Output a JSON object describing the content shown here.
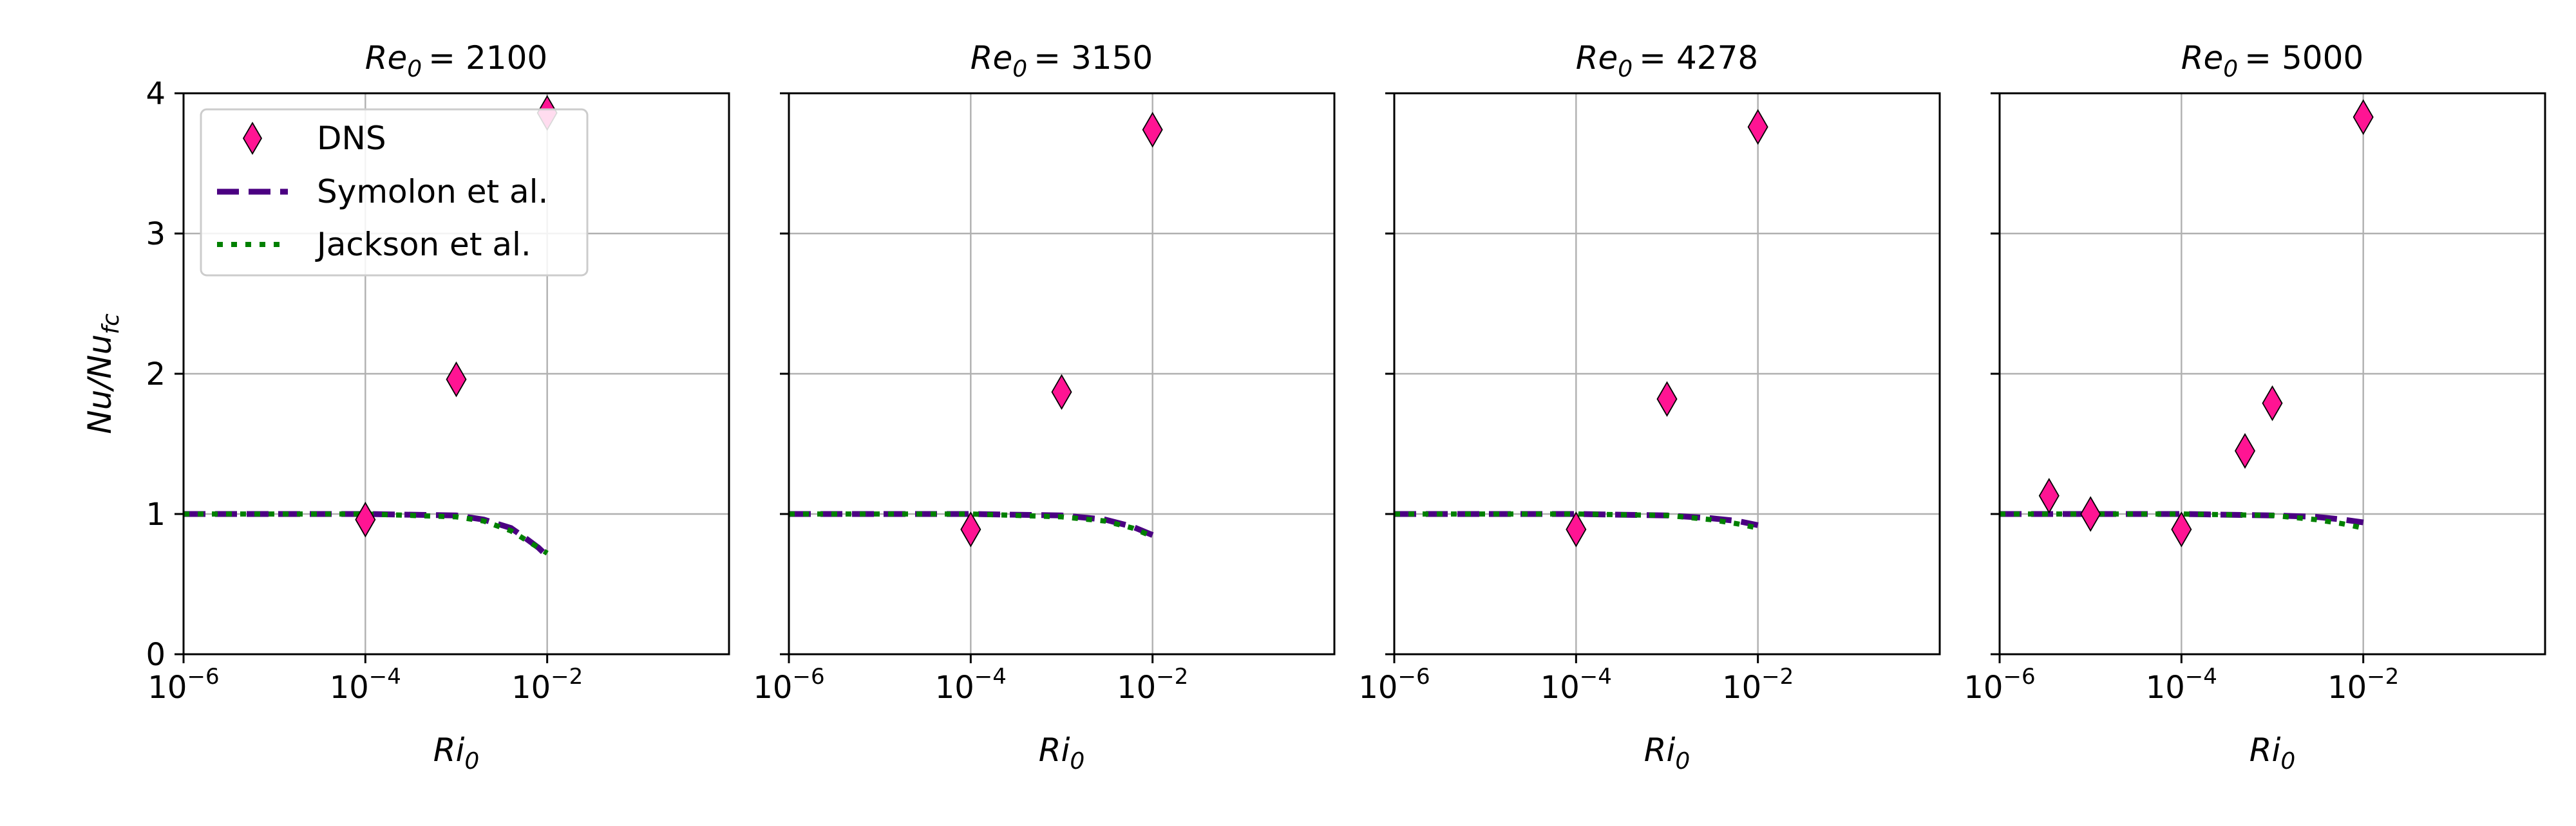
{
  "chart_data": [
    {
      "type": "scatter",
      "title_prefix": "Re",
      "title_sub": "0",
      "title_value": "= 2100",
      "xlabel": "Ri",
      "xlabel_sub": "0",
      "ylabel": "Nu/Nu",
      "ylabel_sub": "fc",
      "x_scale": "log",
      "xlim": [
        1e-06,
        1.0
      ],
      "ylim": [
        0,
        4
      ],
      "x_ticks": [
        {
          "base": "10",
          "exp": "−6",
          "value": 1e-06
        },
        {
          "base": "10",
          "exp": "−4",
          "value": 0.0001
        },
        {
          "base": "10",
          "exp": "−2",
          "value": 0.01
        }
      ],
      "y_ticks": [
        "0",
        "1",
        "2",
        "3",
        "4"
      ],
      "grid": true,
      "series": [
        {
          "name": "DNS",
          "kind": "markers",
          "marker": "diamond",
          "color": "#ff1493",
          "x": [
            0.0001,
            0.001,
            0.01
          ],
          "y": [
            0.96,
            1.96,
            3.86
          ]
        },
        {
          "name": "Symolon et al.",
          "kind": "dashed",
          "color": "#4b0082",
          "x": [
            1e-06,
            0.0001,
            0.001,
            0.002,
            0.004,
            0.006,
            0.008,
            0.01
          ],
          "y": [
            1.0,
            1.0,
            0.99,
            0.96,
            0.9,
            0.82,
            0.76,
            0.7
          ]
        },
        {
          "name": "Jackson et al.",
          "kind": "dotted",
          "color": "#008000",
          "x": [
            1e-06,
            0.0001,
            0.001,
            0.002,
            0.004,
            0.006,
            0.008,
            0.01
          ],
          "y": [
            1.0,
            1.0,
            0.98,
            0.95,
            0.88,
            0.81,
            0.76,
            0.72
          ]
        }
      ],
      "legend": {
        "position": "top-left",
        "entries": [
          "DNS",
          "Symolon et al.",
          "Jackson et al."
        ]
      }
    },
    {
      "type": "scatter",
      "title_prefix": "Re",
      "title_sub": "0",
      "title_value": "= 3150",
      "xlabel": "Ri",
      "xlabel_sub": "0",
      "x_scale": "log",
      "xlim": [
        1e-06,
        1.0
      ],
      "ylim": [
        0,
        4
      ],
      "x_ticks": [
        {
          "base": "10",
          "exp": "−6",
          "value": 1e-06
        },
        {
          "base": "10",
          "exp": "−4",
          "value": 0.0001
        },
        {
          "base": "10",
          "exp": "−2",
          "value": 0.01
        }
      ],
      "grid": true,
      "series": [
        {
          "name": "DNS",
          "kind": "markers",
          "marker": "diamond",
          "color": "#ff1493",
          "x": [
            0.0001,
            0.001,
            0.01
          ],
          "y": [
            0.89,
            1.87,
            3.74
          ]
        },
        {
          "name": "Symolon et al.",
          "kind": "dashed",
          "color": "#4b0082",
          "x": [
            1e-06,
            0.0001,
            0.001,
            0.003,
            0.006,
            0.01
          ],
          "y": [
            1.0,
            1.0,
            0.99,
            0.96,
            0.91,
            0.85
          ]
        },
        {
          "name": "Jackson et al.",
          "kind": "dotted",
          "color": "#008000",
          "x": [
            1e-06,
            0.0001,
            0.001,
            0.003,
            0.006,
            0.01
          ],
          "y": [
            1.0,
            1.0,
            0.98,
            0.95,
            0.9,
            0.84
          ]
        }
      ]
    },
    {
      "type": "scatter",
      "title_prefix": "Re",
      "title_sub": "0",
      "title_value": "= 4278",
      "xlabel": "Ri",
      "xlabel_sub": "0",
      "x_scale": "log",
      "xlim": [
        1e-06,
        1.0
      ],
      "ylim": [
        0,
        4
      ],
      "x_ticks": [
        {
          "base": "10",
          "exp": "−6",
          "value": 1e-06
        },
        {
          "base": "10",
          "exp": "−4",
          "value": 0.0001
        },
        {
          "base": "10",
          "exp": "−2",
          "value": 0.01
        }
      ],
      "grid": true,
      "series": [
        {
          "name": "DNS",
          "kind": "markers",
          "marker": "diamond",
          "color": "#ff1493",
          "x": [
            0.0001,
            0.001,
            0.01
          ],
          "y": [
            0.89,
            1.82,
            3.76
          ]
        },
        {
          "name": "Symolon et al.",
          "kind": "dashed",
          "color": "#4b0082",
          "x": [
            1e-06,
            0.0001,
            0.001,
            0.003,
            0.006,
            0.01
          ],
          "y": [
            1.0,
            1.0,
            0.99,
            0.97,
            0.95,
            0.92
          ]
        },
        {
          "name": "Jackson et al.",
          "kind": "dotted",
          "color": "#008000",
          "x": [
            1e-06,
            0.0001,
            0.001,
            0.003,
            0.006,
            0.01
          ],
          "y": [
            1.0,
            1.0,
            0.99,
            0.96,
            0.93,
            0.9
          ]
        }
      ]
    },
    {
      "type": "scatter",
      "title_prefix": "Re",
      "title_sub": "0",
      "title_value": "= 5000",
      "xlabel": "Ri",
      "xlabel_sub": "0",
      "x_scale": "log",
      "xlim": [
        1e-06,
        1.0
      ],
      "ylim": [
        0,
        4
      ],
      "x_ticks": [
        {
          "base": "10",
          "exp": "−6",
          "value": 1e-06
        },
        {
          "base": "10",
          "exp": "−4",
          "value": 0.0001
        },
        {
          "base": "10",
          "exp": "−2",
          "value": 0.01
        }
      ],
      "grid": true,
      "series": [
        {
          "name": "DNS",
          "kind": "markers",
          "marker": "diamond",
          "color": "#ff1493",
          "x": [
            3.5e-06,
            1e-05,
            0.0001,
            0.0005,
            0.001,
            0.01
          ],
          "y": [
            1.13,
            1.0,
            0.89,
            1.45,
            1.79,
            3.83
          ]
        },
        {
          "name": "Symolon et al.",
          "kind": "dashed",
          "color": "#4b0082",
          "x": [
            1e-06,
            0.0001,
            0.001,
            0.003,
            0.006,
            0.01
          ],
          "y": [
            1.0,
            1.0,
            0.99,
            0.98,
            0.96,
            0.94
          ]
        },
        {
          "name": "Jackson et al.",
          "kind": "dotted",
          "color": "#008000",
          "x": [
            1e-06,
            0.0001,
            0.001,
            0.003,
            0.006,
            0.01
          ],
          "y": [
            1.0,
            1.0,
            0.99,
            0.96,
            0.93,
            0.9
          ]
        }
      ]
    }
  ]
}
